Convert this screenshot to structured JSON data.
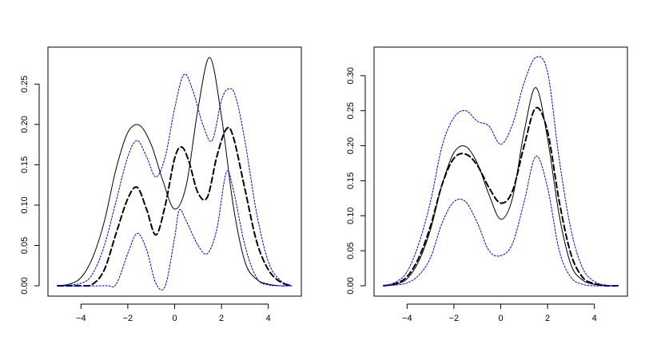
{
  "chart_data": [
    {
      "type": "line",
      "title": "",
      "xlabel": "",
      "ylabel": "",
      "xlim": [
        -5,
        5
      ],
      "ylim": [
        0,
        0.28
      ],
      "x_ticks": [
        -4,
        -2,
        0,
        2,
        4
      ],
      "x_tick_labels": [
        "−4",
        "−2",
        "0",
        "2",
        "4"
      ],
      "y_ticks": [
        0.0,
        0.05,
        0.1,
        0.15,
        0.2,
        0.25
      ],
      "y_tick_labels": [
        "0.00",
        "0.05",
        "0.10",
        "0.15",
        "0.20",
        "0.25"
      ],
      "grid": false,
      "series": [
        {
          "style": "solid",
          "color": "#000000",
          "x": [
            -5,
            -4.5,
            -4,
            -3.5,
            -3,
            -2.5,
            -2,
            -1.5,
            -1,
            -0.5,
            0,
            0.5,
            1,
            1.5,
            2,
            2.5,
            3,
            3.5,
            4,
            4.5,
            5
          ],
          "y": [
            0.0,
            0.002,
            0.01,
            0.035,
            0.08,
            0.145,
            0.19,
            0.199,
            0.175,
            0.13,
            0.095,
            0.125,
            0.22,
            0.283,
            0.21,
            0.1,
            0.03,
            0.008,
            0.002,
            0.0,
            0.0
          ]
        },
        {
          "style": "dashed",
          "color": "#000000",
          "x": [
            -5,
            -4,
            -3.5,
            -3,
            -2.5,
            -2,
            -1.6,
            -1.2,
            -0.8,
            -0.4,
            0,
            0.3,
            0.6,
            1,
            1.4,
            1.8,
            2.2,
            2.5,
            3,
            3.5,
            4,
            4.5,
            5
          ],
          "y": [
            0.0,
            0.0,
            0.002,
            0.02,
            0.065,
            0.108,
            0.122,
            0.095,
            0.063,
            0.1,
            0.158,
            0.172,
            0.155,
            0.115,
            0.11,
            0.16,
            0.194,
            0.185,
            0.12,
            0.055,
            0.02,
            0.005,
            0.0
          ]
        },
        {
          "style": "dotted",
          "color": "#0000cc",
          "x": [
            -5,
            -4,
            -3.5,
            -3,
            -2.5,
            -2,
            -1.6,
            -1.2,
            -0.8,
            -0.4,
            0,
            0.4,
            0.8,
            1.2,
            1.6,
            2,
            2.3,
            2.6,
            3,
            3.5,
            4,
            4.5,
            5
          ],
          "y": [
            0.0,
            0.003,
            0.015,
            0.05,
            0.105,
            0.16,
            0.18,
            0.16,
            0.135,
            0.16,
            0.22,
            0.262,
            0.24,
            0.2,
            0.18,
            0.23,
            0.244,
            0.235,
            0.18,
            0.09,
            0.03,
            0.007,
            0.0
          ]
        },
        {
          "style": "dotted",
          "color": "#0000cc",
          "x": [
            -5,
            -3,
            -2.5,
            -2,
            -1.6,
            -1.2,
            -0.8,
            -0.4,
            0,
            0.2,
            0.5,
            1,
            1.4,
            1.8,
            2.2,
            2.5,
            3,
            3.5,
            4,
            5
          ],
          "y": [
            0.0,
            0.0,
            0.002,
            0.04,
            0.065,
            0.045,
            0.003,
            0.0,
            0.06,
            0.094,
            0.08,
            0.05,
            0.04,
            0.07,
            0.14,
            0.12,
            0.05,
            0.01,
            0.001,
            0.0
          ]
        }
      ]
    },
    {
      "type": "line",
      "title": "",
      "xlabel": "",
      "ylabel": "",
      "xlim": [
        -5,
        5
      ],
      "ylim": [
        0,
        0.32
      ],
      "x_ticks": [
        -4,
        -2,
        0,
        2,
        4
      ],
      "x_tick_labels": [
        "−4",
        "−2",
        "0",
        "2",
        "4"
      ],
      "y_ticks": [
        0.0,
        0.05,
        0.1,
        0.15,
        0.2,
        0.25,
        0.3
      ],
      "y_tick_labels": [
        "0.00",
        "0.05",
        "0.10",
        "0.15",
        "0.20",
        "0.25",
        "0.30"
      ],
      "grid": false,
      "series": [
        {
          "style": "solid",
          "color": "#000000",
          "x": [
            -5,
            -4.5,
            -4,
            -3.5,
            -3,
            -2.5,
            -2,
            -1.5,
            -1,
            -0.5,
            0,
            0.5,
            1,
            1.5,
            2,
            2.5,
            3,
            3.5,
            4,
            4.5,
            5
          ],
          "y": [
            0.0,
            0.002,
            0.01,
            0.035,
            0.08,
            0.145,
            0.19,
            0.199,
            0.175,
            0.13,
            0.095,
            0.125,
            0.22,
            0.283,
            0.21,
            0.1,
            0.03,
            0.008,
            0.002,
            0.0,
            0.0
          ]
        },
        {
          "style": "dashed",
          "color": "#000000",
          "x": [
            -5,
            -4.5,
            -4,
            -3.5,
            -3,
            -2.5,
            -2,
            -1.5,
            -1,
            -0.5,
            0,
            0.5,
            1,
            1.5,
            2,
            2.5,
            3,
            3.5,
            4,
            4.5,
            5
          ],
          "y": [
            0.0,
            0.003,
            0.013,
            0.04,
            0.085,
            0.145,
            0.182,
            0.188,
            0.172,
            0.14,
            0.118,
            0.135,
            0.2,
            0.254,
            0.22,
            0.12,
            0.045,
            0.012,
            0.003,
            0.0,
            0.0
          ]
        },
        {
          "style": "dotted",
          "color": "#0000cc",
          "x": [
            -5,
            -4.5,
            -4,
            -3.5,
            -3,
            -2.5,
            -2,
            -1.5,
            -1,
            -0.5,
            0,
            0.5,
            1,
            1.5,
            2,
            2.5,
            3,
            3.5,
            4,
            4.5,
            5
          ],
          "y": [
            0.0,
            0.005,
            0.02,
            0.06,
            0.12,
            0.2,
            0.24,
            0.25,
            0.235,
            0.228,
            0.202,
            0.23,
            0.29,
            0.326,
            0.305,
            0.18,
            0.08,
            0.025,
            0.006,
            0.001,
            0.0
          ]
        },
        {
          "style": "dotted",
          "color": "#0000cc",
          "x": [
            -5,
            -4.5,
            -4,
            -3.5,
            -3,
            -2.5,
            -2,
            -1.5,
            -1,
            -0.5,
            0,
            0.5,
            1,
            1.5,
            2,
            2.5,
            3,
            3.5,
            4,
            4.5,
            5
          ],
          "y": [
            0.0,
            0.001,
            0.004,
            0.015,
            0.04,
            0.09,
            0.12,
            0.12,
            0.09,
            0.05,
            0.043,
            0.06,
            0.12,
            0.185,
            0.14,
            0.05,
            0.012,
            0.002,
            0.0,
            0.0,
            0.0
          ]
        }
      ]
    }
  ]
}
